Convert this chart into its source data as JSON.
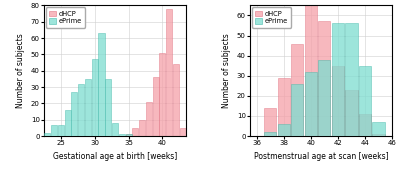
{
  "left_chart": {
    "xlabel": "Gestational age at birth [weeks]",
    "ylabel": "Number of subjects",
    "xlim": [
      22.5,
      43.5
    ],
    "ylim": [
      0,
      80
    ],
    "yticks": [
      0,
      10,
      20,
      30,
      40,
      50,
      60,
      70,
      80
    ],
    "xticks": [
      25,
      30,
      35,
      40
    ],
    "dhcp_bins": [
      23,
      24,
      25,
      26,
      27,
      28,
      29,
      30,
      31,
      32,
      33,
      34,
      35,
      36,
      37,
      38,
      39,
      40,
      41,
      42,
      43
    ],
    "dhcp_values": [
      0,
      0,
      0,
      0,
      0,
      0,
      0,
      0,
      0,
      0,
      0,
      0,
      1,
      5,
      10,
      21,
      36,
      51,
      78,
      44,
      5
    ],
    "eprime_bins": [
      23,
      24,
      25,
      26,
      27,
      28,
      29,
      30,
      31,
      32,
      33,
      34,
      35,
      36,
      37,
      38,
      39,
      40,
      41,
      42,
      43
    ],
    "eprime_values": [
      2,
      7,
      7,
      16,
      27,
      32,
      35,
      47,
      63,
      35,
      8,
      1,
      1,
      0,
      0,
      0,
      0,
      0,
      0,
      0,
      0
    ]
  },
  "right_chart": {
    "xlabel": "Postmenstrual age at scan [weeks]",
    "ylabel": "Number of subjects",
    "xlim": [
      35.5,
      46.0
    ],
    "ylim": [
      0,
      65
    ],
    "yticks": [
      0,
      10,
      20,
      30,
      40,
      50,
      60
    ],
    "xticks": [
      36,
      38,
      40,
      42,
      44,
      46
    ],
    "dhcp_bins": [
      37,
      38,
      39,
      40,
      41,
      42,
      43,
      44,
      45
    ],
    "dhcp_values": [
      14,
      29,
      46,
      65,
      57,
      35,
      23,
      11,
      1
    ],
    "eprime_bins": [
      37,
      38,
      39,
      40,
      41,
      42,
      43,
      44,
      45
    ],
    "eprime_values": [
      2,
      6,
      26,
      32,
      38,
      56,
      56,
      35,
      7
    ]
  },
  "dhcp_color": "#F5A0A8",
  "dhcp_edge": "#E07080",
  "dhcp_alpha": 0.75,
  "eprime_color": "#7DDDD0",
  "eprime_edge": "#40B8A8",
  "eprime_alpha": 0.75,
  "bar_width": 0.9
}
